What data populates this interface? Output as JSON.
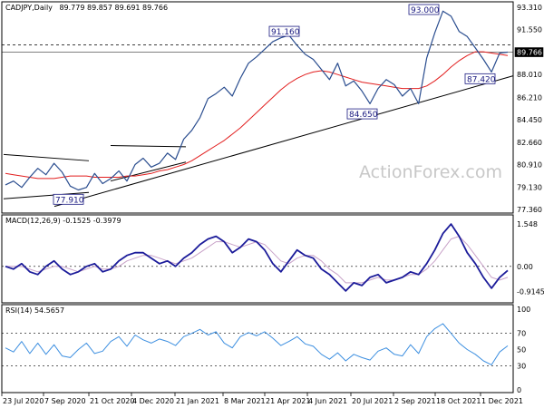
{
  "header": {
    "symbol": "CADJPY,Daily",
    "ohlc": "89.779 89.857 89.691 89.766",
    "macd_label": "MACD(12,26,9) -0.1525 -0.3979",
    "rsi_label": "RSI(14) 54.5657"
  },
  "watermark": "ActionForex.com",
  "colors": {
    "price_line": "#2a4d8f",
    "ma": "#e21e1e",
    "trend": "#000000",
    "macd": "#1c1c9a",
    "signal": "#c8a2c8",
    "rsi": "#3d8fe0",
    "grid": "#000000",
    "annotation": "#1a1a80"
  },
  "chart_data": [
    {
      "type": "line",
      "panel": "price",
      "y_ticks": [
        "93.310",
        "91.550",
        "89.766",
        "88.010",
        "86.210",
        "84.450",
        "82.660",
        "80.910",
        "79.130",
        "77.360"
      ],
      "ylim": [
        77.36,
        93.31
      ],
      "x_ticks": [
        "23 Jul 2020",
        "7 Sep 2020",
        "21 Oct 2020",
        "4 Dec 2020",
        "21 Jan 2021",
        "8 Mar 2021",
        "21 Apr 2021",
        "4 Jun 2021",
        "20 Jul 2021",
        "2 Sep 2021",
        "18 Oct 2021",
        "1 Dec 2021"
      ],
      "series": [
        {
          "values": [
            79.3,
            79.6,
            79.1,
            79.9,
            80.6,
            80.1,
            81.0,
            80.3,
            79.2,
            78.9,
            79.1,
            80.2,
            79.4,
            79.8,
            80.4,
            79.6,
            80.9,
            81.4,
            80.7,
            81.0,
            81.8,
            81.3,
            82.9,
            83.6,
            84.6,
            86.1,
            86.5,
            87.0,
            86.3,
            87.7,
            88.9,
            89.4,
            90.0,
            90.6,
            90.9,
            91.1,
            90.3,
            89.6,
            89.2,
            88.4,
            87.6,
            88.9,
            87.1,
            87.5,
            86.7,
            85.7,
            86.9,
            87.6,
            87.2,
            86.3,
            86.9,
            85.7,
            89.3,
            91.3,
            93.0,
            92.6,
            91.4,
            91.0,
            90.1,
            89.2,
            88.2,
            89.7,
            89.766
          ]
        },
        {
          "values": [
            80.2,
            80.1,
            80.0,
            79.9,
            79.8,
            79.8,
            79.8,
            79.9,
            80.0,
            80.0,
            80.0,
            79.9,
            79.9,
            79.9,
            79.9,
            80.0,
            80.0,
            80.1,
            80.2,
            80.4,
            80.5,
            80.7,
            80.9,
            81.2,
            81.6,
            82.0,
            82.4,
            82.8,
            83.3,
            83.8,
            84.4,
            85.0,
            85.6,
            86.2,
            86.8,
            87.3,
            87.7,
            88.0,
            88.2,
            88.3,
            88.2,
            88.0,
            87.8,
            87.6,
            87.4,
            87.3,
            87.2,
            87.1,
            87.0,
            86.9,
            86.9,
            86.9,
            87.1,
            87.5,
            88.0,
            88.6,
            89.1,
            89.5,
            89.8,
            89.8,
            89.7,
            89.6,
            89.5
          ]
        }
      ],
      "levels": [
        "90.340"
      ],
      "annotations": [
        "77.910",
        "91.160",
        "84.650",
        "93.000",
        "87.420"
      ]
    },
    {
      "type": "line",
      "panel": "macd",
      "y_ticks": [
        "1.548",
        "0.00",
        "-0.9145"
      ],
      "ylim": [
        -1.2,
        1.75
      ],
      "series": [
        {
          "values": [
            0.0,
            -0.1,
            0.1,
            -0.2,
            -0.3,
            0.0,
            0.2,
            -0.1,
            -0.3,
            -0.2,
            0.0,
            0.1,
            -0.2,
            -0.1,
            0.2,
            0.4,
            0.5,
            0.5,
            0.3,
            0.1,
            0.2,
            0.0,
            0.3,
            0.5,
            0.8,
            1.0,
            1.1,
            0.9,
            0.5,
            0.7,
            1.0,
            0.9,
            0.6,
            0.1,
            -0.2,
            0.2,
            0.6,
            0.4,
            0.3,
            -0.1,
            -0.3,
            -0.6,
            -0.9,
            -0.6,
            -0.7,
            -0.4,
            -0.3,
            -0.6,
            -0.5,
            -0.4,
            -0.2,
            -0.3,
            0.1,
            0.6,
            1.2,
            1.548,
            1.1,
            0.5,
            0.1,
            -0.4,
            -0.8,
            -0.4,
            -0.15
          ]
        },
        {
          "values": [
            0.0,
            0.0,
            0.0,
            -0.1,
            -0.2,
            -0.1,
            0.0,
            0.0,
            -0.1,
            -0.2,
            -0.1,
            0.0,
            -0.1,
            -0.1,
            0.0,
            0.2,
            0.3,
            0.4,
            0.4,
            0.3,
            0.2,
            0.1,
            0.2,
            0.3,
            0.5,
            0.7,
            0.9,
            0.9,
            0.8,
            0.7,
            0.8,
            0.9,
            0.8,
            0.5,
            0.2,
            0.1,
            0.3,
            0.4,
            0.4,
            0.2,
            -0.1,
            -0.3,
            -0.6,
            -0.6,
            -0.6,
            -0.5,
            -0.4,
            -0.5,
            -0.5,
            -0.4,
            -0.3,
            -0.3,
            -0.1,
            0.2,
            0.6,
            1.0,
            1.1,
            0.8,
            0.4,
            0.0,
            -0.4,
            -0.5,
            -0.4
          ]
        }
      ]
    },
    {
      "type": "line",
      "panel": "rsi",
      "y_ticks": [
        "100",
        "70",
        "50",
        "30",
        "0"
      ],
      "ylim": [
        0,
        100
      ],
      "levels": [
        70,
        30
      ],
      "series": [
        {
          "values": [
            52,
            47,
            60,
            45,
            58,
            44,
            56,
            42,
            40,
            50,
            58,
            45,
            48,
            60,
            66,
            54,
            68,
            62,
            58,
            63,
            60,
            55,
            66,
            70,
            75,
            68,
            72,
            58,
            52,
            66,
            71,
            67,
            72,
            64,
            55,
            60,
            66,
            57,
            54,
            44,
            38,
            46,
            36,
            44,
            40,
            37,
            48,
            52,
            44,
            42,
            56,
            45,
            66,
            76,
            82,
            70,
            58,
            50,
            44,
            36,
            31,
            47,
            54.57
          ]
        }
      ]
    }
  ]
}
